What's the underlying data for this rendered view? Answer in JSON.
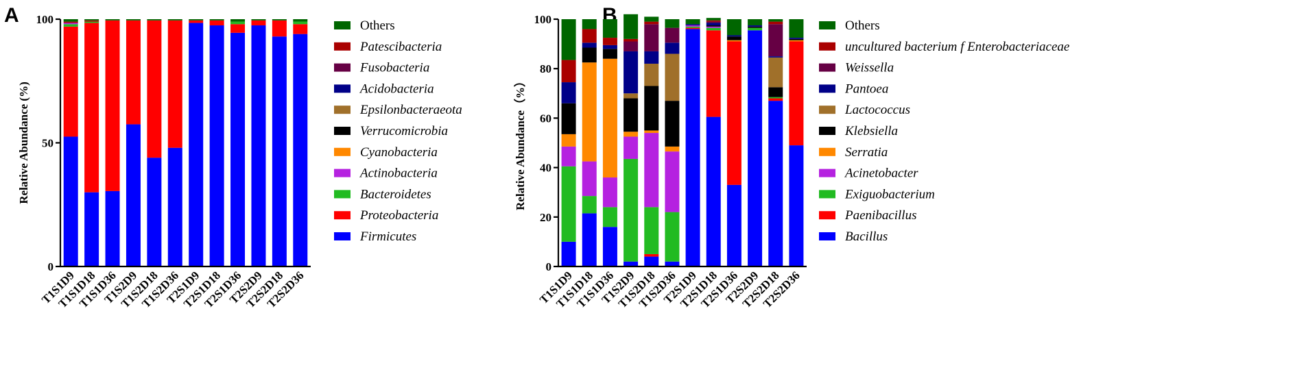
{
  "chart_data": [
    {
      "panel": "A",
      "type": "bar",
      "stacked": true,
      "ylabel": "Relative Abundance (%)",
      "ylim": [
        0,
        100
      ],
      "yticks": [
        0,
        50,
        100
      ],
      "categories": [
        "T1S1D9",
        "T1S1D18",
        "T1S1D36",
        "T1S2D9",
        "T1S2D18",
        "T1S2D36",
        "T2S1D9",
        "T2S1D18",
        "T2S1D36",
        "T2S2D9",
        "T2S2D18",
        "T2S2D36"
      ],
      "series": [
        {
          "name": "Firmicutes",
          "color": "#0000ff",
          "values": [
            52.5,
            30,
            30.5,
            57.5,
            44,
            48,
            98.5,
            97.5,
            94.5,
            97.5,
            93,
            94
          ]
        },
        {
          "name": "Proteobacteria",
          "color": "#ff0000",
          "values": [
            44.5,
            68.5,
            69,
            42,
            55.5,
            51.5,
            1,
            2,
            3.5,
            2,
            6.5,
            4
          ]
        },
        {
          "name": "Bacteroidetes",
          "color": "#22bb22",
          "values": [
            1,
            0.5,
            0,
            0,
            0,
            0,
            0,
            0,
            1,
            0,
            0,
            1
          ]
        },
        {
          "name": "Actinobacteria",
          "color": "#b522e0",
          "values": [
            0.5,
            0,
            0,
            0,
            0,
            0,
            0,
            0,
            0,
            0,
            0,
            0
          ]
        },
        {
          "name": "Cyanobacteria",
          "color": "#ff8800",
          "values": [
            0,
            0,
            0,
            0,
            0,
            0,
            0,
            0,
            0,
            0,
            0,
            0
          ]
        },
        {
          "name": "Verrucomicrobia",
          "color": "#000000",
          "values": [
            0,
            0,
            0,
            0,
            0,
            0,
            0,
            0,
            0,
            0,
            0,
            0
          ]
        },
        {
          "name": "Epsilonbacteraeota",
          "color": "#a0702a",
          "values": [
            0,
            0,
            0,
            0,
            0,
            0,
            0,
            0,
            0,
            0,
            0,
            0
          ]
        },
        {
          "name": "Acidobacteria",
          "color": "#000088",
          "values": [
            0,
            0,
            0,
            0,
            0,
            0,
            0,
            0,
            0,
            0,
            0,
            0
          ]
        },
        {
          "name": "Fusobacteria",
          "color": "#660044",
          "values": [
            0,
            0,
            0,
            0,
            0,
            0,
            0,
            0,
            0,
            0,
            0,
            0
          ]
        },
        {
          "name": "Patescibacteria",
          "color": "#aa0000",
          "values": [
            0.5,
            0.5,
            0,
            0,
            0,
            0,
            0,
            0,
            0,
            0,
            0,
            0
          ]
        },
        {
          "name": "Others",
          "color": "#006600",
          "values": [
            1,
            0.5,
            0.5,
            0.5,
            0.5,
            0.5,
            0.5,
            0.5,
            1,
            0.5,
            0.5,
            1
          ]
        }
      ]
    },
    {
      "panel": "B",
      "type": "bar",
      "stacked": true,
      "ylabel": "Relative Abundance（%）",
      "ylim": [
        0,
        100
      ],
      "yticks": [
        0,
        20,
        40,
        60,
        80,
        100
      ],
      "categories": [
        "T1S1D9",
        "T1S1D18",
        "T1S1D36",
        "T1S2D9",
        "T1S2D18",
        "T1S2D36",
        "T2S1D9",
        "T2S1D18",
        "T2S1D36",
        "T2S2D9",
        "T2S2D18",
        "T2S2D36"
      ],
      "series": [
        {
          "name": "Bacillus",
          "color": "#0000ff",
          "values": [
            10,
            21.5,
            16,
            2,
            4,
            2,
            96,
            60.5,
            33,
            95.5,
            67,
            49
          ]
        },
        {
          "name": "Paenibacillus",
          "color": "#ff0000",
          "values": [
            0,
            0,
            0,
            0,
            1,
            0,
            0.5,
            35,
            58,
            0,
            1,
            42
          ]
        },
        {
          "name": "Exiguobacterium",
          "color": "#22bb22",
          "values": [
            30.5,
            7,
            8,
            41.5,
            19,
            20,
            0.5,
            1,
            0,
            1,
            0.5,
            0
          ]
        },
        {
          "name": "Acinetobacter",
          "color": "#b522e0",
          "values": [
            8,
            14,
            12,
            9,
            30,
            24.5,
            0.5,
            0.5,
            0,
            0,
            0,
            0
          ]
        },
        {
          "name": "Serratia",
          "color": "#ff8800",
          "values": [
            5,
            40,
            48,
            2,
            1,
            2,
            0,
            0,
            0.5,
            0,
            0,
            0.5
          ]
        },
        {
          "name": "Klebsiella",
          "color": "#000000",
          "values": [
            12.5,
            6,
            4,
            13.5,
            18,
            18.5,
            0,
            0.5,
            1.5,
            0.5,
            4,
            0.5
          ]
        },
        {
          "name": "Lactococcus",
          "color": "#a0702a",
          "values": [
            0,
            0,
            0,
            2,
            9,
            19,
            0,
            0,
            0,
            0,
            12,
            0
          ]
        },
        {
          "name": "Pantoea",
          "color": "#000088",
          "values": [
            8.5,
            2,
            1.5,
            17,
            5,
            4.5,
            0.5,
            1,
            0.5,
            0.5,
            0.5,
            0.5
          ]
        },
        {
          "name": "Weissella",
          "color": "#660044",
          "values": [
            0,
            0,
            0,
            4,
            11,
            6,
            0,
            0.5,
            0,
            0,
            13,
            0
          ]
        },
        {
          "name": "uncultured bacterium f Enterobacteriaceae",
          "color": "#aa0000",
          "values": [
            9,
            5.5,
            3,
            1,
            1,
            0,
            0,
            0.5,
            0,
            0,
            1,
            0
          ]
        },
        {
          "name": "Others",
          "color": "#006600",
          "values": [
            16.5,
            4,
            7.5,
            10,
            2,
            3.5,
            2,
            1,
            6.5,
            2.5,
            1,
            7.5
          ]
        }
      ]
    }
  ]
}
